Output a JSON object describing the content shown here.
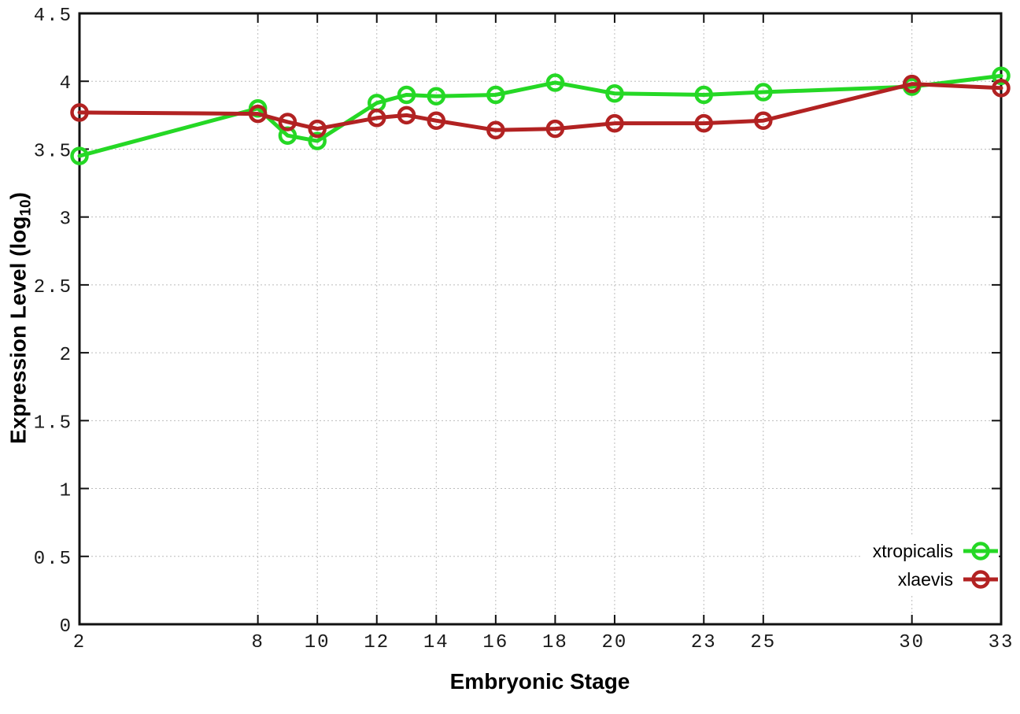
{
  "chart_data": {
    "type": "line",
    "title": "",
    "xlabel": "Embryonic Stage",
    "ylabel": "Expression Level (log10)",
    "ylabel_parts": {
      "prefix": "Expression Level (log",
      "sub": "10",
      "suffix": ")"
    },
    "x": [
      2,
      8,
      9,
      10,
      12,
      13,
      14,
      16,
      18,
      20,
      23,
      25,
      30,
      33
    ],
    "series": [
      {
        "name": "xtropicalis",
        "color": "#25d825",
        "values": [
          3.45,
          3.8,
          3.6,
          3.56,
          3.84,
          3.9,
          3.89,
          3.9,
          3.99,
          3.91,
          3.9,
          3.92,
          3.96,
          4.04
        ]
      },
      {
        "name": "xlaevis",
        "color": "#b22222",
        "values": [
          3.77,
          3.76,
          3.7,
          3.65,
          3.73,
          3.75,
          3.71,
          3.64,
          3.65,
          3.69,
          3.69,
          3.71,
          3.98,
          3.95
        ]
      }
    ],
    "x_ticks": {
      "values": [
        2,
        8,
        10,
        12,
        14,
        16,
        18,
        20,
        23,
        25,
        30,
        33
      ],
      "labels": [
        "2",
        "8",
        "10",
        "12",
        "14",
        "16",
        "18",
        "20",
        "23",
        "25",
        "30",
        "33"
      ]
    },
    "y_ticks": {
      "values": [
        0,
        0.5,
        1,
        1.5,
        2,
        2.5,
        3,
        3.5,
        4,
        4.5
      ],
      "labels": [
        "0",
        "0.5",
        "1",
        "1.5",
        "2",
        "2.5",
        "3",
        "3.5",
        "4",
        "4.5"
      ]
    },
    "xlim": [
      2,
      33
    ],
    "ylim": [
      0,
      4.5
    ],
    "grid": true,
    "legend_position": "inside-bottom-right",
    "colors": {
      "background": "#ffffff",
      "border": "#111111",
      "grid": "#bcbcbc",
      "tick_text": "#1a1a1a"
    }
  }
}
